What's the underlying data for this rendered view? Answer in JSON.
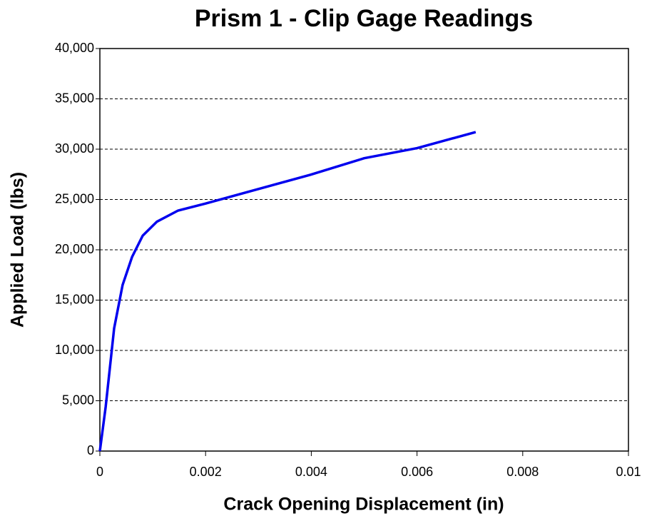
{
  "chart_data": {
    "type": "line",
    "title": "Prism 1 - Clip Gage Readings",
    "xlabel": "Crack Opening Displacement (in)",
    "ylabel": "Applied Load (lbs)",
    "series": [
      {
        "color": "#0000ee",
        "x": [
          0,
          0.00011,
          0.00027,
          0.00043,
          0.00061,
          0.00081,
          0.00108,
          0.00148,
          0.002,
          0.00297,
          0.00398,
          0.005,
          0.006,
          0.00711
        ],
        "values": [
          0,
          4400,
          12200,
          16500,
          19300,
          21400,
          22800,
          23900,
          24600,
          26000,
          27450,
          29100,
          30100,
          31700
        ]
      }
    ],
    "xlim": [
      0,
      0.01
    ],
    "xticks": [
      0,
      0.002,
      0.004,
      0.006,
      0.008,
      0.01
    ],
    "ylim": [
      0,
      40000
    ],
    "yticks": [
      0,
      {
        "value": 5000,
        "label": "5,000"
      },
      {
        "value": 10000,
        "label": "10,000"
      },
      {
        "value": 15000,
        "label": "15,000"
      },
      {
        "value": 20000,
        "label": "20,000"
      },
      {
        "value": 25000,
        "label": "25,000"
      },
      {
        "value": 30000,
        "label": "30,000"
      },
      {
        "value": 35000,
        "label": "35,000"
      },
      {
        "value": 40000,
        "label": "40,000"
      }
    ],
    "grid": true
  }
}
